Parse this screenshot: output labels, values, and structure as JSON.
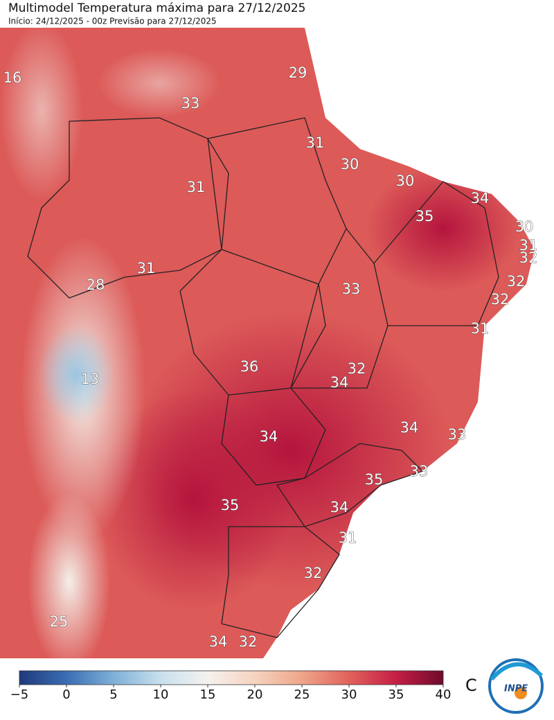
{
  "header": {
    "title": "Multimodel Temperatura máxima para 27/12/2025",
    "subtitle": "Início: 24/12/2025 - 00z  Previsão para 27/12/2025"
  },
  "map_labels": [
    16,
    33,
    29,
    31,
    30,
    30,
    34,
    35,
    30,
    31,
    32,
    32,
    32,
    31,
    33,
    31,
    28,
    31,
    36,
    32,
    34,
    13,
    34,
    34,
    33,
    35,
    33,
    35,
    34,
    31,
    32,
    25,
    34,
    32
  ],
  "colorbar": {
    "ticks": [
      {
        "value": -5,
        "label": "−5"
      },
      0,
      5,
      10,
      15,
      20,
      25,
      30,
      35,
      40
    ],
    "unit": "C"
  },
  "logo": {
    "text": "INPE"
  }
}
